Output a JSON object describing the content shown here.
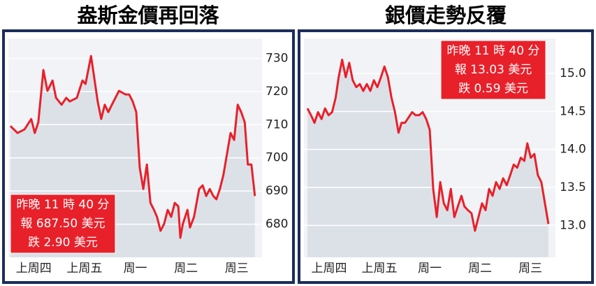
{
  "chart_data": [
    {
      "type": "line",
      "title": "盎斯金價再回落",
      "color": "#e8202a",
      "x": [
        0.04,
        0.18,
        0.32,
        0.45,
        0.52,
        0.59,
        0.69,
        0.77,
        0.87,
        0.94,
        1.05,
        1.14,
        1.21,
        1.35,
        1.46,
        1.52,
        1.63,
        1.69,
        1.76,
        1.83,
        1.9,
        1.97,
        2.04,
        2.18,
        2.31,
        2.38,
        2.45,
        2.52,
        2.59,
        2.66,
        2.73,
        2.8,
        2.87,
        2.93,
        3.0,
        3.07,
        3.14,
        3.21,
        3.28,
        3.35,
        3.39,
        3.44,
        3.53,
        3.58,
        3.66,
        3.76,
        3.83,
        3.9,
        3.97,
        4.04,
        4.1,
        4.17,
        4.24,
        4.31,
        4.38,
        4.45,
        4.52,
        4.59,
        4.66,
        4.72,
        4.79,
        4.86
      ],
      "values": [
        709.6,
        707.5,
        708.6,
        711.7,
        707.5,
        710.7,
        726.5,
        720.2,
        723.3,
        718.1,
        716.0,
        718.1,
        717.0,
        718.1,
        723.3,
        722.3,
        730.7,
        724.4,
        717.0,
        711.7,
        716.0,
        713.8,
        716.0,
        720.2,
        719.1,
        719.1,
        717.0,
        713.8,
        697.0,
        690.6,
        698.0,
        686.4,
        684.3,
        682.2,
        678.0,
        680.1,
        684.3,
        682.2,
        686.4,
        685.4,
        675.9,
        680.1,
        684.3,
        679.0,
        682.2,
        690.6,
        691.7,
        688.5,
        690.6,
        688.5,
        687.5,
        690.6,
        694.9,
        701.2,
        707.5,
        705.4,
        716.0,
        713.8,
        710.7,
        698.0,
        698.0,
        688.5
      ],
      "xlim": [
        0,
        5
      ],
      "ylim": [
        670,
        736
      ],
      "xticks": [
        {
          "value": 0.5,
          "label": "上周四"
        },
        {
          "value": 1.5,
          "label": "上周五"
        },
        {
          "value": 2.5,
          "label": "周一"
        },
        {
          "value": 3.5,
          "label": "周二"
        },
        {
          "value": 4.5,
          "label": "周三"
        }
      ],
      "yticks": [
        680,
        690,
        700,
        710,
        720,
        730
      ],
      "grid": true,
      "annotation": [
        "昨晚 11 時 40 分",
        "報 687.50 美元",
        "跌 2.90 美元"
      ],
      "annotation_corner": "bottom-left"
    },
    {
      "type": "line",
      "title": "銀價走勢反覆",
      "color": "#e8202a",
      "x": [
        0.07,
        0.14,
        0.21,
        0.28,
        0.35,
        0.42,
        0.49,
        0.56,
        0.63,
        0.69,
        0.76,
        0.83,
        0.9,
        0.97,
        1.04,
        1.11,
        1.18,
        1.25,
        1.32,
        1.39,
        1.46,
        1.53,
        1.6,
        1.67,
        1.74,
        1.81,
        1.88,
        1.94,
        2.01,
        2.15,
        2.22,
        2.29,
        2.36,
        2.43,
        2.5,
        2.57,
        2.64,
        2.71,
        2.78,
        2.85,
        2.92,
        2.99,
        3.06,
        3.13,
        3.19,
        3.26,
        3.33,
        3.4,
        3.47,
        3.54,
        3.61,
        3.68,
        3.75,
        3.82,
        3.89,
        3.96,
        4.03,
        4.1,
        4.17,
        4.24,
        4.31,
        4.38,
        4.44,
        4.51,
        4.58,
        4.65,
        4.72,
        4.79,
        4.86
      ],
      "values": [
        14.54,
        14.45,
        14.35,
        14.49,
        14.4,
        14.54,
        14.45,
        14.49,
        14.68,
        14.95,
        15.18,
        14.95,
        15.14,
        14.91,
        14.82,
        14.86,
        14.77,
        14.86,
        14.77,
        14.91,
        14.82,
        14.95,
        15.09,
        14.95,
        14.68,
        14.49,
        14.22,
        14.35,
        14.35,
        14.49,
        14.45,
        14.45,
        14.49,
        14.4,
        14.26,
        13.48,
        13.11,
        13.57,
        13.29,
        13.2,
        13.48,
        13.11,
        13.25,
        13.39,
        13.25,
        13.2,
        13.16,
        12.93,
        13.11,
        13.29,
        13.2,
        13.48,
        13.39,
        13.57,
        13.48,
        13.62,
        13.53,
        13.66,
        13.8,
        13.76,
        13.89,
        13.85,
        14.08,
        13.89,
        13.94,
        13.66,
        13.57,
        13.29,
        13.02
      ],
      "xlim": [
        0,
        5
      ],
      "ylim": [
        12.58,
        15.46
      ],
      "xticks": [
        {
          "value": 0.5,
          "label": "上周四"
        },
        {
          "value": 1.5,
          "label": "上周五"
        },
        {
          "value": 2.5,
          "label": "周一"
        },
        {
          "value": 3.5,
          "label": "周二"
        },
        {
          "value": 4.5,
          "label": "周三"
        }
      ],
      "yticks": [
        {
          "value": 13,
          "label": "13.0"
        },
        13.5,
        {
          "value": 14,
          "label": "14.0"
        },
        14.5,
        {
          "value": 15,
          "label": "15.0"
        }
      ],
      "grid": true,
      "annotation": [
        "昨晚 11 時 40 分",
        "報 13.03 美元",
        "跌 0.59 美元"
      ],
      "annotation_corner": "top-right"
    }
  ]
}
